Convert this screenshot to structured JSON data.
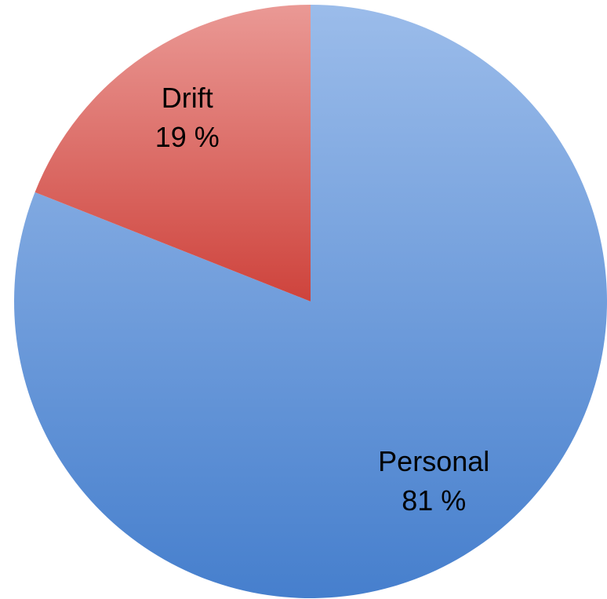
{
  "chart_data": {
    "type": "pie",
    "categories": [
      "Personal",
      "Drift"
    ],
    "values": [
      81,
      19
    ],
    "value_labels": [
      "81 %",
      "19 %"
    ],
    "colors": [
      "#4a86d8",
      "#d9463f"
    ]
  }
}
